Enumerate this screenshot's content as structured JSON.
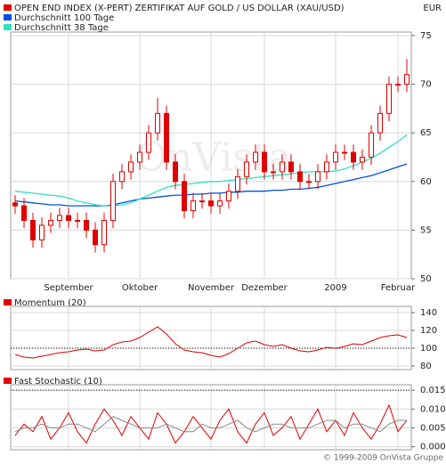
{
  "footer": "© 1999-2009 OnVista Gruppe",
  "chart_data": [
    {
      "type": "candlestick",
      "name": "OPEN END INDEX (X-PERT) ZERTIFIKAT AUF GOLD / US DOLLAR (XAU/USD)",
      "color": "#e00000",
      "currency": "EUR",
      "watermark": "OnVista",
      "categories": [
        null,
        null,
        null,
        null,
        null,
        null,
        "September",
        null,
        null,
        null,
        null,
        null,
        null,
        null,
        "Oktober",
        null,
        null,
        null,
        null,
        null,
        null,
        null,
        "November",
        null,
        null,
        null,
        null,
        null,
        "Dezember",
        null,
        null,
        null,
        null,
        null,
        null,
        null,
        "2009",
        null,
        null,
        null,
        null,
        null,
        null,
        "Februar",
        null
      ],
      "open": [
        57.8,
        57.5,
        56,
        54,
        55.5,
        56,
        56.5,
        56,
        56,
        55,
        53.5,
        56,
        60,
        61,
        62,
        63,
        65,
        67,
        62,
        60,
        57,
        58,
        58,
        57.5,
        58,
        59,
        60.5,
        62,
        63,
        61,
        61,
        62,
        61,
        60,
        60,
        61,
        62,
        63,
        63,
        62,
        62.5,
        65,
        67,
        70,
        70
      ],
      "high": [
        58.6,
        58.3,
        56.8,
        56.3,
        56.8,
        57.3,
        57.3,
        56.8,
        56.8,
        55.8,
        56.8,
        60.8,
        61.8,
        62.8,
        63.8,
        65.8,
        68.6,
        67.8,
        62.8,
        60.8,
        58.8,
        58.8,
        58.8,
        58.8,
        59.8,
        61.3,
        62.8,
        63.8,
        63.8,
        61.8,
        62.8,
        62.8,
        61.8,
        60.8,
        61.8,
        62.8,
        63.8,
        63.8,
        63.8,
        63.3,
        65.8,
        67.8,
        70.8,
        70.8,
        72.6
      ],
      "low": [
        56.7,
        55.2,
        53.2,
        53.2,
        54.7,
        55.2,
        55.2,
        55.2,
        54.2,
        52.7,
        52.7,
        55.2,
        59.2,
        60.2,
        61.2,
        62.2,
        64.2,
        61.2,
        59.2,
        56.2,
        56.2,
        57.2,
        56.7,
        56.7,
        57.2,
        58.2,
        59.7,
        61.2,
        60.2,
        60.2,
        60.2,
        60.2,
        59.2,
        59.2,
        59.2,
        60.2,
        61.2,
        62.2,
        61.2,
        61.2,
        61.7,
        64.2,
        66.2,
        69.2,
        69.2
      ],
      "close": [
        57.5,
        56,
        54,
        55.5,
        56,
        56.5,
        56,
        56,
        55,
        53.5,
        56,
        60,
        61,
        62,
        63,
        65,
        67,
        62,
        60,
        57,
        58,
        58,
        57.5,
        58,
        59,
        60.5,
        62,
        63,
        61,
        61,
        62,
        61,
        60,
        60,
        61,
        62,
        63,
        63,
        62,
        62.5,
        65,
        67,
        70,
        70,
        71
      ],
      "series": [
        {
          "name": "Durchschnitt 100 Tage",
          "color": "#0050e0",
          "values": [
            58,
            57.9,
            57.8,
            57.7,
            57.6,
            57.6,
            57.5,
            57.5,
            57.5,
            57.5,
            57.5,
            57.6,
            57.8,
            58,
            58.2,
            58.3,
            58.4,
            58.5,
            58.6,
            58.6,
            58.7,
            58.7,
            58.8,
            58.8,
            58.9,
            58.9,
            59,
            59,
            59,
            59.1,
            59.1,
            59.2,
            59.2,
            59.3,
            59.4,
            59.6,
            59.8,
            60,
            60.2,
            60.4,
            60.6,
            60.9,
            61.2,
            61.5,
            61.8
          ]
        },
        {
          "name": "Durchschnitt 38 Tage",
          "color": "#30e0c0",
          "values": [
            59,
            58.9,
            58.8,
            58.7,
            58.6,
            58.5,
            58.3,
            58,
            57.8,
            57.6,
            57.5,
            57.5,
            57.6,
            57.8,
            58.2,
            58.6,
            59,
            59.4,
            59.6,
            59.7,
            59.8,
            59.9,
            60,
            60,
            60.1,
            60.2,
            60.3,
            60.4,
            60.5,
            60.6,
            60.7,
            60.8,
            60.9,
            61,
            61,
            61,
            61.1,
            61.3,
            61.6,
            62,
            62.4,
            62.9,
            63.5,
            64.1,
            64.8
          ]
        }
      ],
      "ylim": [
        50,
        75
      ],
      "yticks": [
        50,
        55,
        60,
        65,
        70,
        75
      ],
      "grid": true
    },
    {
      "type": "line",
      "title": "Momentum (20)",
      "color": "#e00000",
      "reference": 100,
      "series": [
        {
          "color": "#e00000",
          "values": [
            93,
            90,
            89,
            91,
            93,
            95,
            96,
            98,
            99,
            97,
            98,
            104,
            107,
            108,
            112,
            118,
            124,
            116,
            105,
            98,
            96,
            95,
            92,
            90,
            94,
            100,
            106,
            108,
            104,
            102,
            104,
            100,
            97,
            96,
            98,
            101,
            100,
            102,
            105,
            104,
            108,
            112,
            114,
            115,
            112
          ]
        }
      ],
      "ylim": [
        76,
        143
      ],
      "yticks": [
        80,
        100,
        120,
        140
      ],
      "grid": true
    },
    {
      "type": "line",
      "title": "Fast Stochastic (10)",
      "color": "#e00000",
      "reference": 0.015,
      "series": [
        {
          "color": "#e00000",
          "values": [
            0.003,
            0.006,
            0.004,
            0.008,
            0.002,
            0.005,
            0.009,
            0.004,
            0.001,
            0.006,
            0.01,
            0.007,
            0.003,
            0.008,
            0.005,
            0.002,
            0.009,
            0.006,
            0.001,
            0.004,
            0.008,
            0.005,
            0.002,
            0.007,
            0.01,
            0.004,
            0.001,
            0.006,
            0.009,
            0.003,
            0.005,
            0.008,
            0.002,
            0.006,
            0.01,
            0.004,
            0.007,
            0.003,
            0.009,
            0.005,
            0.002,
            0.006,
            0.011,
            0.004,
            0.007
          ]
        },
        {
          "color": "#888888",
          "values": [
            0.004,
            0.005,
            0.005,
            0.006,
            0.005,
            0.005,
            0.006,
            0.006,
            0.005,
            0.004,
            0.006,
            0.008,
            0.007,
            0.006,
            0.005,
            0.005,
            0.005,
            0.006,
            0.005,
            0.004,
            0.004,
            0.006,
            0.005,
            0.005,
            0.006,
            0.007,
            0.005,
            0.004,
            0.005,
            0.006,
            0.006,
            0.005,
            0.005,
            0.005,
            0.006,
            0.007,
            0.007,
            0.005,
            0.006,
            0.006,
            0.005,
            0.004,
            0.006,
            0.007,
            0.007
          ]
        }
      ],
      "ylim": [
        -0.0008,
        0.0155
      ],
      "yticks": [
        {
          "value": 0,
          "label": "0.000"
        },
        {
          "value": 0.005,
          "label": "0.005"
        },
        {
          "value": 0.01,
          "label": "0.010"
        },
        {
          "value": 0.015,
          "label": "0.015"
        }
      ],
      "grid": true
    }
  ]
}
